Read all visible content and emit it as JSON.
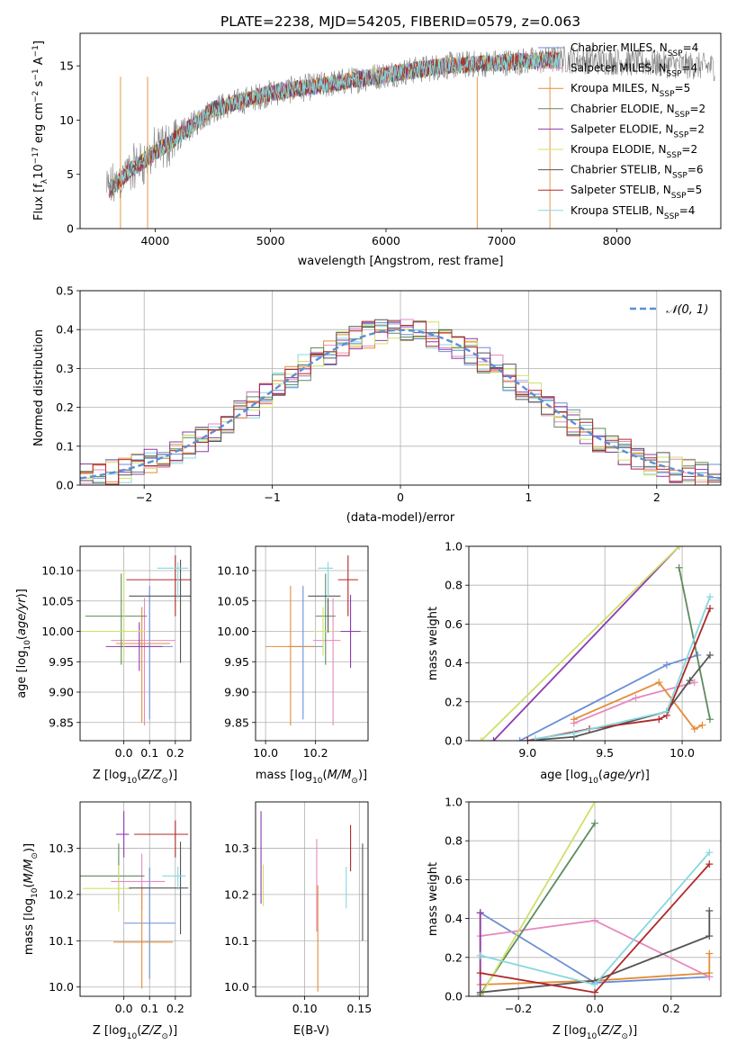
{
  "figure_title": "PLATE=2238, MJD=54205, FIBERID=0579, z=0.063",
  "colors": {
    "series": [
      "#6a8ed6",
      "#e58ac0",
      "#e38c37",
      "#5f8a5f",
      "#8d3ab0",
      "#cfe06a",
      "#555555",
      "#b0282a",
      "#86d8e0"
    ],
    "spectrum_gray": "#808080",
    "gaussian": "#5b8fd6",
    "grid": "#b0b0b0"
  },
  "chart_data": [
    {
      "id": "spectrum",
      "type": "line",
      "title": "PLATE=2238, MJD=54205, FIBERID=0579, z=0.063",
      "xlabel": "wavelength [Angstrom, rest frame]",
      "ylabel_parts": [
        "Flux [f",
        "λ",
        "10",
        "−17",
        " erg cm",
        "−2",
        " s",
        "−1",
        " A",
        "−1",
        "]"
      ],
      "xlim": [
        3350,
        8900
      ],
      "ylim": [
        0,
        18
      ],
      "xticks": [
        4000,
        5000,
        6000,
        7000,
        8000
      ],
      "yticks": [
        0,
        5,
        10,
        15
      ],
      "grid": false,
      "legend_placement": "right",
      "legend": [
        {
          "name": "Chabrier MILES",
          "n": "4"
        },
        {
          "name": "Salpeter MILES",
          "n": "4"
        },
        {
          "name": "Kroupa MILES",
          "n": "5"
        },
        {
          "name": "Chabrier ELODIE",
          "n": "2"
        },
        {
          "name": "Salpeter ELODIE",
          "n": "2"
        },
        {
          "name": "Kroupa ELODIE",
          "n": "2"
        },
        {
          "name": "Chabrier STELIB",
          "n": "6"
        },
        {
          "name": "Salpeter STELIB",
          "n": "5"
        },
        {
          "name": "Kroupa STELIB",
          "n": "4"
        }
      ],
      "legend_n_label": [
        "N",
        "SSP",
        "="
      ],
      "observed_trend": {
        "x": [
          3600,
          3800,
          4000,
          4200,
          4500,
          5000,
          5500,
          6000,
          6500,
          7000,
          7500,
          8000,
          8500,
          8850
        ],
        "y": [
          3.5,
          5.5,
          7.0,
          8.5,
          11.0,
          12.5,
          13.3,
          14.2,
          15.0,
          15.3,
          15.6,
          15.4,
          15.1,
          14.9
        ]
      },
      "model_x_range": [
        3600,
        7500
      ]
    },
    {
      "id": "residuals",
      "type": "histogram",
      "xlabel": "(data-model)/error",
      "ylabel": "Normed distribution",
      "xlim": [
        -2.5,
        2.5
      ],
      "ylim": [
        0,
        0.5
      ],
      "xticks": [
        -2,
        -1,
        0,
        1,
        2
      ],
      "yticks": [
        0,
        0.1,
        0.2,
        0.3,
        0.4,
        0.5
      ],
      "grid": true,
      "bin_width": 0.1,
      "legend": "𝒩(0, 1)",
      "legend_placement": "top-right"
    },
    {
      "id": "age_vs_Z",
      "type": "scatter",
      "xlabel_parts": [
        "Z [log",
        "10",
        "(",
        "Z/Z",
        "⊙",
        ")]"
      ],
      "ylabel_parts": [
        "age  [log",
        "10",
        "(",
        "age/yr",
        ")]"
      ],
      "xlim": [
        -0.17,
        0.26
      ],
      "ylim": [
        9.82,
        10.14
      ],
      "xticks": [
        0.0,
        0.1,
        0.2
      ],
      "yticks": [
        9.85,
        9.9,
        9.95,
        10.0,
        10.05,
        10.1
      ],
      "grid": true,
      "points": [
        {
          "x": 0.1,
          "y": 9.975,
          "xerr": [
            0.12,
            0.09
          ],
          "yerr": [
            0.12,
            0.1
          ]
        },
        {
          "x": 0.08,
          "y": 9.985,
          "xerr": [
            0.13,
            0.12
          ],
          "yerr": [
            0.14,
            0.07
          ]
        },
        {
          "x": 0.07,
          "y": 9.98,
          "xerr": [
            0.1,
            0.11
          ],
          "yerr": [
            0.13,
            0.06
          ]
        },
        {
          "x": -0.01,
          "y": 10.025,
          "xerr": [
            0.14,
            0.1
          ],
          "yerr": [
            0.08,
            0.07
          ]
        },
        {
          "x": 0.06,
          "y": 9.975,
          "xerr": [
            0.13,
            0.09
          ],
          "yerr": [
            0.04,
            0.04
          ]
        },
        {
          "x": 0.0,
          "y": 10.0,
          "xerr": [
            0.16,
            0.09
          ],
          "yerr": [
            0.05,
            0.1
          ]
        },
        {
          "x": 0.22,
          "y": 10.058,
          "xerr": [
            0.2,
            0.06
          ],
          "yerr": [
            0.11,
            0.06
          ]
        },
        {
          "x": 0.2,
          "y": 10.085,
          "xerr": [
            0.19,
            0.06
          ],
          "yerr": [
            0.06,
            0.04
          ]
        },
        {
          "x": 0.21,
          "y": 10.104,
          "xerr": [
            0.08,
            0.04
          ],
          "yerr": [
            0.05,
            0.01
          ]
        }
      ]
    },
    {
      "id": "age_vs_mass",
      "type": "scatter",
      "xlabel_parts": [
        "mass [log",
        "10",
        "(",
        "M/M",
        "⊙",
        ")]"
      ],
      "xlim": [
        9.96,
        10.41
      ],
      "ylim": [
        9.82,
        10.14
      ],
      "xticks": [
        10.0,
        10.2
      ],
      "yticks": [
        9.85,
        9.9,
        9.95,
        10.0,
        10.05,
        10.1
      ],
      "grid": true,
      "points": [
        {
          "x": 10.15,
          "y": 9.975,
          "xerr": [
            0.06,
            0.08
          ],
          "yerr": [
            0.12,
            0.1
          ]
        },
        {
          "x": 10.27,
          "y": 9.985,
          "xerr": [
            0.08,
            0.03
          ],
          "yerr": [
            0.14,
            0.07
          ]
        },
        {
          "x": 10.1,
          "y": 9.975,
          "xerr": [
            0.1,
            0.1
          ],
          "yerr": [
            0.13,
            0.1
          ]
        },
        {
          "x": 10.24,
          "y": 10.025,
          "xerr": [
            0.04,
            0.04
          ],
          "yerr": [
            0.08,
            0.07
          ]
        },
        {
          "x": 10.34,
          "y": 10.0,
          "xerr": [
            0.04,
            0.04
          ],
          "yerr": [
            0.06,
            0.06
          ]
        },
        {
          "x": 10.23,
          "y": 10.0,
          "xerr": [
            0.04,
            0.04
          ],
          "yerr": [
            0.04,
            0.04
          ]
        },
        {
          "x": 10.25,
          "y": 10.058,
          "xerr": [
            0.08,
            0.05
          ],
          "yerr": [
            0.06,
            0.04
          ]
        },
        {
          "x": 10.33,
          "y": 10.085,
          "xerr": [
            0.04,
            0.04
          ],
          "yerr": [
            0.06,
            0.04
          ]
        },
        {
          "x": 10.25,
          "y": 10.104,
          "xerr": [
            0.04,
            0.02
          ],
          "yerr": [
            0.05,
            0.01
          ]
        }
      ]
    },
    {
      "id": "weight_vs_age",
      "type": "line",
      "xlabel_parts": [
        "age  [log",
        "10",
        "(",
        "age/yr",
        ")]"
      ],
      "ylabel": "mass weight",
      "xlim": [
        8.62,
        10.25
      ],
      "ylim": [
        0,
        1
      ],
      "xticks": [
        9.0,
        9.5,
        10.0
      ],
      "yticks": [
        0.0,
        0.2,
        0.4,
        0.6,
        0.8,
        1.0
      ],
      "grid": true,
      "series": [
        {
          "x": [
            8.95,
            9.9,
            10.1
          ],
          "y": [
            0.0,
            0.39,
            0.44
          ]
        },
        {
          "x": [
            9.3,
            9.7,
            10.08
          ],
          "y": [
            0.09,
            0.22,
            0.3
          ]
        },
        {
          "x": [
            9.3,
            9.85,
            10.08,
            10.13
          ],
          "y": [
            0.11,
            0.3,
            0.06,
            0.08
          ]
        },
        {
          "x": [
            9.98,
            10.18
          ],
          "y": [
            0.89,
            0.11
          ]
        },
        {
          "x": [
            8.78,
            9.98
          ],
          "y": [
            0.0,
            1.0
          ]
        },
        {
          "x": [
            8.7,
            9.98
          ],
          "y": [
            0.0,
            1.0
          ]
        },
        {
          "x": [
            9.0,
            9.3,
            9.9,
            10.05,
            10.18
          ],
          "y": [
            0.0,
            0.02,
            0.15,
            0.31,
            0.44
          ]
        },
        {
          "x": [
            9.0,
            9.4,
            9.85,
            9.9,
            10.18
          ],
          "y": [
            0.0,
            0.06,
            0.11,
            0.13,
            0.68
          ]
        },
        {
          "x": [
            9.05,
            9.3,
            9.9,
            10.18
          ],
          "y": [
            0.01,
            0.04,
            0.15,
            0.74
          ]
        }
      ]
    },
    {
      "id": "mass_vs_Z",
      "type": "scatter",
      "xlabel_parts": [
        "Z [log",
        "10",
        "(",
        "Z/Z",
        "⊙",
        ")]"
      ],
      "ylabel_parts": [
        "mass [log",
        "10",
        "(",
        "M/M",
        "⊙",
        ")]"
      ],
      "xlim": [
        -0.17,
        0.26
      ],
      "ylim": [
        9.98,
        10.4
      ],
      "xticks": [
        0.0,
        0.1,
        0.2
      ],
      "yticks": [
        10.0,
        10.1,
        10.2,
        10.3
      ],
      "grid": true,
      "points": [
        {
          "x": 0.1,
          "y": 10.138,
          "xerr": [
            0.1,
            0.1
          ],
          "yerr": [
            0.12,
            0.12
          ]
        },
        {
          "x": 0.07,
          "y": 10.228,
          "xerr": [
            0.12,
            0.09
          ],
          "yerr": [
            0.06,
            0.06
          ]
        },
        {
          "x": 0.07,
          "y": 10.097,
          "xerr": [
            0.11,
            0.12
          ],
          "yerr": [
            0.1,
            0.12
          ]
        },
        {
          "x": -0.02,
          "y": 10.24,
          "xerr": [
            0.15,
            0.1
          ],
          "yerr": [
            0.06,
            0.07
          ]
        },
        {
          "x": 0.0,
          "y": 10.33,
          "xerr": [
            0.03,
            0.02
          ],
          "yerr": [
            0.05,
            0.05
          ]
        },
        {
          "x": -0.02,
          "y": 10.213,
          "xerr": [
            0.14,
            0.05
          ],
          "yerr": [
            0.05,
            0.05
          ]
        },
        {
          "x": 0.22,
          "y": 10.214,
          "xerr": [
            0.2,
            0.03
          ],
          "yerr": [
            0.1,
            0.1
          ]
        },
        {
          "x": 0.2,
          "y": 10.33,
          "xerr": [
            0.16,
            0.05
          ],
          "yerr": [
            0.05,
            0.03
          ]
        },
        {
          "x": 0.21,
          "y": 10.24,
          "xerr": [
            0.06,
            0.03
          ],
          "yerr": [
            0.03,
            0.02
          ]
        }
      ]
    },
    {
      "id": "mass_vs_ebv",
      "type": "scatter",
      "xlabel": "E(B-V)",
      "xlim": [
        0.055,
        0.158
      ],
      "ylim": [
        9.98,
        10.4
      ],
      "xticks": [
        0.1,
        0.15
      ],
      "yticks": [
        10.0,
        10.1,
        10.2,
        10.3
      ],
      "grid": true,
      "points": [
        {
          "x": 0.06,
          "y": 10.3,
          "xerr": [
            0,
            0
          ],
          "yerr": [
            0.12,
            0.08
          ]
        },
        {
          "x": 0.062,
          "y": 10.215,
          "xerr": [
            0,
            0
          ],
          "yerr": [
            0.04,
            0.05
          ]
        },
        {
          "x": 0.111,
          "y": 10.21,
          "xerr": [
            0,
            0
          ],
          "yerr": [
            0.09,
            0.11
          ]
        },
        {
          "x": 0.112,
          "y": 10.1,
          "xerr": [
            0,
            0
          ],
          "yerr": [
            0.11,
            0.12
          ]
        },
        {
          "x": 0.138,
          "y": 10.21,
          "xerr": [
            0,
            0
          ],
          "yerr": [
            0.04,
            0.05
          ]
        },
        {
          "x": 0.142,
          "y": 10.3,
          "xerr": [
            0,
            0
          ],
          "yerr": [
            0.05,
            0.05
          ]
        },
        {
          "x": 0.153,
          "y": 10.2,
          "xerr": [
            0,
            0
          ],
          "yerr": [
            0.1,
            0.11
          ]
        }
      ],
      "point_colors": [
        4,
        5,
        1,
        2,
        8,
        7,
        6
      ]
    },
    {
      "id": "weight_vs_Z",
      "type": "line",
      "xlabel_parts": [
        "Z [log",
        "10",
        "(",
        "Z/Z",
        "⊙",
        ")]"
      ],
      "ylabel": "mass weight",
      "xlim": [
        -0.33,
        0.33
      ],
      "ylim": [
        0,
        1
      ],
      "xticks": [
        -0.2,
        0.0,
        0.2
      ],
      "yticks": [
        0.0,
        0.2,
        0.4,
        0.6,
        0.8,
        1.0
      ],
      "grid": true,
      "series": [
        {
          "x": [
            -0.3,
            0.0,
            0.3
          ],
          "y": [
            0.43,
            0.07,
            0.1
          ]
        },
        {
          "x": [
            -0.3,
            0.0,
            0.3
          ],
          "y": [
            0.31,
            0.39,
            0.1
          ]
        },
        {
          "x": [
            -0.3,
            -0.3,
            0.0,
            0.3,
            0.3
          ],
          "y": [
            0.43,
            0.06,
            0.08,
            0.12,
            0.22
          ]
        },
        {
          "x": [
            -0.3,
            0.0
          ],
          "y": [
            0.01,
            0.89
          ]
        },
        {
          "x": [
            -0.3,
            -0.3
          ],
          "y": [
            0.0,
            0.43
          ]
        },
        {
          "x": [
            -0.3,
            0.0
          ],
          "y": [
            0.0,
            1.0
          ]
        },
        {
          "x": [
            -0.3,
            0.0,
            0.3,
            0.3
          ],
          "y": [
            0.02,
            0.08,
            0.31,
            0.44
          ]
        },
        {
          "x": [
            -0.3,
            0.0,
            0.3
          ],
          "y": [
            0.12,
            0.02,
            0.68
          ]
        },
        {
          "x": [
            -0.3,
            0.0,
            0.3
          ],
          "y": [
            0.21,
            0.06,
            0.74
          ]
        }
      ]
    }
  ]
}
